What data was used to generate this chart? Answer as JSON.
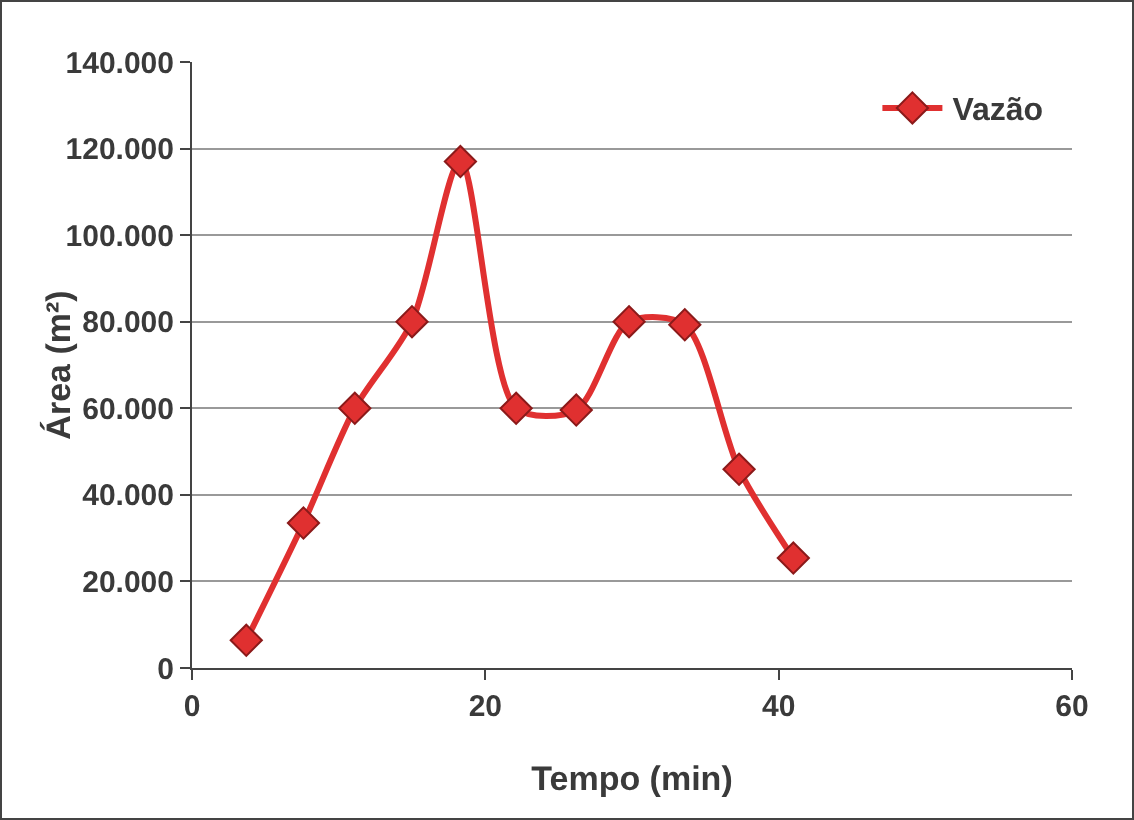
{
  "chart_data": {
    "type": "line",
    "xlabel": "Tempo (min)",
    "ylabel": "Área (m²)",
    "x": [
      3.7,
      7.6,
      11.1,
      15,
      18.3,
      22.1,
      26.2,
      29.8,
      33.6,
      37.3,
      41
    ],
    "series": [
      {
        "name": "Vazão",
        "color": "#e03030",
        "values": [
          6400,
          33500,
          60000,
          80000,
          117000,
          60000,
          59600,
          80000,
          79300,
          45900,
          25400
        ]
      }
    ],
    "xlim": [
      0,
      60
    ],
    "xticks": [
      0,
      20,
      40,
      60
    ],
    "ylim": [
      0,
      140000
    ],
    "yticks": [
      {
        "value": 0,
        "label": "0"
      },
      {
        "value": 20000,
        "label": "20.000"
      },
      {
        "value": 40000,
        "label": "40.000"
      },
      {
        "value": 60000,
        "label": "60.000"
      },
      {
        "value": 80000,
        "label": "80.000"
      },
      {
        "value": 100000,
        "label": "100.000"
      },
      {
        "value": 120000,
        "label": "120.000"
      },
      {
        "value": 140000,
        "label": "140.000"
      }
    ],
    "grid": "y",
    "legend": "top right",
    "marker": "diamond",
    "line_style": "solid"
  }
}
